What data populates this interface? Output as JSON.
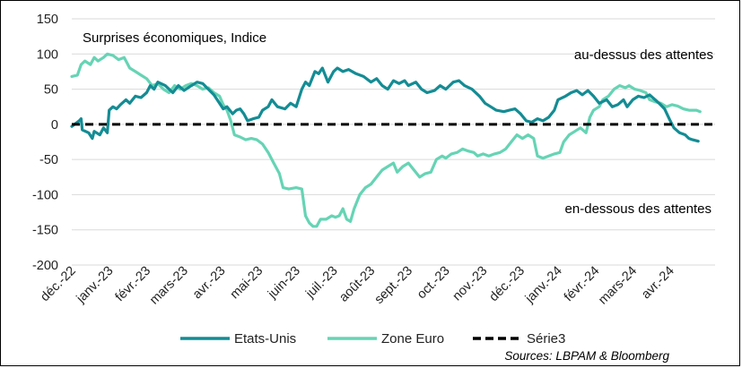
{
  "chart_data": {
    "type": "line",
    "title": "Surprises économiques, Indice",
    "annotations": {
      "upper": "au-dessus des attentes",
      "lower": "en-dessous des attentes"
    },
    "source": "Sources: LBPAM & Bloomberg",
    "ylim": [
      -200,
      150
    ],
    "yticks": [
      150,
      100,
      50,
      0,
      -50,
      -100,
      -150,
      -200
    ],
    "ytick_labels": [
      "150",
      "100",
      "50",
      "0",
      "-50",
      "-100",
      "-150",
      "-200"
    ],
    "xlim": [
      0,
      17.2
    ],
    "x_labels": [
      "déc.-22",
      "janv.-23",
      "févr.-23",
      "mars-23",
      "avr.-23",
      "mai-23",
      "juin-23",
      "juil.-23",
      "août-23",
      "sept.-23",
      "oct.-23",
      "nov.-23",
      "déc.-23",
      "janv.-24",
      "févr.-24",
      "mars-24",
      "avr.-24"
    ],
    "grid": "horizontal",
    "legend_position": "bottom",
    "series": [
      {
        "name": "Etats-Unis",
        "color": "#148C94",
        "style": "solid",
        "points": [
          [
            0,
            -3
          ],
          [
            0.2,
            5
          ],
          [
            0.25,
            8
          ],
          [
            0.28,
            -8
          ],
          [
            0.45,
            -12
          ],
          [
            0.55,
            -20
          ],
          [
            0.6,
            -10
          ],
          [
            0.75,
            -15
          ],
          [
            0.85,
            -5
          ],
          [
            0.95,
            -12
          ],
          [
            1.0,
            20
          ],
          [
            1.1,
            25
          ],
          [
            1.2,
            22
          ],
          [
            1.3,
            28
          ],
          [
            1.45,
            35
          ],
          [
            1.55,
            30
          ],
          [
            1.7,
            40
          ],
          [
            1.85,
            38
          ],
          [
            2.0,
            45
          ],
          [
            2.1,
            55
          ],
          [
            2.2,
            50
          ],
          [
            2.3,
            60
          ],
          [
            2.5,
            55
          ],
          [
            2.7,
            45
          ],
          [
            2.85,
            55
          ],
          [
            3.0,
            48
          ],
          [
            3.2,
            55
          ],
          [
            3.35,
            60
          ],
          [
            3.5,
            58
          ],
          [
            3.65,
            50
          ],
          [
            3.8,
            42
          ],
          [
            3.95,
            30
          ],
          [
            4.05,
            22
          ],
          [
            4.15,
            25
          ],
          [
            4.3,
            15
          ],
          [
            4.4,
            20
          ],
          [
            4.5,
            22
          ],
          [
            4.6,
            15
          ],
          [
            4.7,
            5
          ],
          [
            4.85,
            8
          ],
          [
            5.0,
            10
          ],
          [
            5.1,
            20
          ],
          [
            5.25,
            25
          ],
          [
            5.35,
            35
          ],
          [
            5.5,
            25
          ],
          [
            5.7,
            22
          ],
          [
            5.85,
            30
          ],
          [
            6.0,
            25
          ],
          [
            6.15,
            50
          ],
          [
            6.25,
            60
          ],
          [
            6.35,
            55
          ],
          [
            6.5,
            75
          ],
          [
            6.6,
            72
          ],
          [
            6.7,
            80
          ],
          [
            6.85,
            60
          ],
          [
            7.0,
            75
          ],
          [
            7.1,
            80
          ],
          [
            7.25,
            75
          ],
          [
            7.4,
            78
          ],
          [
            7.6,
            72
          ],
          [
            7.8,
            68
          ],
          [
            8.0,
            60
          ],
          [
            8.15,
            65
          ],
          [
            8.3,
            55
          ],
          [
            8.45,
            50
          ],
          [
            8.6,
            62
          ],
          [
            8.75,
            58
          ],
          [
            8.9,
            62
          ],
          [
            9.0,
            55
          ],
          [
            9.2,
            60
          ],
          [
            9.35,
            50
          ],
          [
            9.5,
            45
          ],
          [
            9.7,
            48
          ],
          [
            9.85,
            55
          ],
          [
            10.0,
            50
          ],
          [
            10.2,
            60
          ],
          [
            10.35,
            62
          ],
          [
            10.5,
            55
          ],
          [
            10.7,
            50
          ],
          [
            10.9,
            40
          ],
          [
            11.05,
            30
          ],
          [
            11.2,
            25
          ],
          [
            11.35,
            20
          ],
          [
            11.55,
            18
          ],
          [
            11.7,
            20
          ],
          [
            11.85,
            22
          ],
          [
            12.0,
            15
          ],
          [
            12.15,
            5
          ],
          [
            12.3,
            3
          ],
          [
            12.45,
            8
          ],
          [
            12.6,
            5
          ],
          [
            12.75,
            10
          ],
          [
            12.9,
            20
          ],
          [
            13.0,
            35
          ],
          [
            13.2,
            40
          ],
          [
            13.35,
            45
          ],
          [
            13.5,
            48
          ],
          [
            13.65,
            42
          ],
          [
            13.8,
            48
          ],
          [
            13.95,
            40
          ],
          [
            14.1,
            30
          ],
          [
            14.3,
            35
          ],
          [
            14.45,
            25
          ],
          [
            14.6,
            28
          ],
          [
            14.75,
            35
          ],
          [
            14.85,
            25
          ],
          [
            15.0,
            35
          ],
          [
            15.15,
            40
          ],
          [
            15.3,
            38
          ],
          [
            15.45,
            42
          ],
          [
            15.6,
            35
          ],
          [
            15.7,
            30
          ],
          [
            15.85,
            22
          ],
          [
            16.0,
            5
          ],
          [
            16.1,
            -5
          ],
          [
            16.25,
            -12
          ],
          [
            16.4,
            -15
          ],
          [
            16.5,
            -20
          ],
          [
            16.6,
            -22
          ],
          [
            16.75,
            -24
          ]
        ]
      },
      {
        "name": "Zone Euro",
        "color": "#66D4B4",
        "style": "solid",
        "points": [
          [
            0,
            68
          ],
          [
            0.15,
            70
          ],
          [
            0.25,
            85
          ],
          [
            0.35,
            90
          ],
          [
            0.5,
            85
          ],
          [
            0.6,
            95
          ],
          [
            0.7,
            90
          ],
          [
            0.85,
            95
          ],
          [
            0.95,
            100
          ],
          [
            1.1,
            98
          ],
          [
            1.25,
            92
          ],
          [
            1.4,
            95
          ],
          [
            1.55,
            80
          ],
          [
            1.7,
            75
          ],
          [
            1.85,
            70
          ],
          [
            2.0,
            65
          ],
          [
            2.15,
            55
          ],
          [
            2.3,
            58
          ],
          [
            2.45,
            50
          ],
          [
            2.6,
            45
          ],
          [
            2.75,
            55
          ],
          [
            2.9,
            50
          ],
          [
            3.05,
            55
          ],
          [
            3.2,
            58
          ],
          [
            3.35,
            55
          ],
          [
            3.5,
            50
          ],
          [
            3.65,
            52
          ],
          [
            3.8,
            45
          ],
          [
            3.95,
            40
          ],
          [
            4.05,
            28
          ],
          [
            4.15,
            20
          ],
          [
            4.25,
            5
          ],
          [
            4.35,
            -15
          ],
          [
            4.5,
            -18
          ],
          [
            4.65,
            -22
          ],
          [
            4.8,
            -20
          ],
          [
            4.95,
            -22
          ],
          [
            5.1,
            -28
          ],
          [
            5.25,
            -40
          ],
          [
            5.4,
            -55
          ],
          [
            5.55,
            -70
          ],
          [
            5.65,
            -90
          ],
          [
            5.8,
            -92
          ],
          [
            6.0,
            -90
          ],
          [
            6.15,
            -92
          ],
          [
            6.25,
            -130
          ],
          [
            6.35,
            -140
          ],
          [
            6.45,
            -145
          ],
          [
            6.55,
            -145
          ],
          [
            6.65,
            -135
          ],
          [
            6.8,
            -135
          ],
          [
            6.95,
            -130
          ],
          [
            7.05,
            -132
          ],
          [
            7.15,
            -130
          ],
          [
            7.25,
            -120
          ],
          [
            7.35,
            -135
          ],
          [
            7.45,
            -138
          ],
          [
            7.55,
            -120
          ],
          [
            7.7,
            -100
          ],
          [
            7.85,
            -90
          ],
          [
            8.0,
            -85
          ],
          [
            8.15,
            -75
          ],
          [
            8.3,
            -65
          ],
          [
            8.45,
            -60
          ],
          [
            8.6,
            -55
          ],
          [
            8.7,
            -68
          ],
          [
            8.85,
            -60
          ],
          [
            9.0,
            -55
          ],
          [
            9.15,
            -65
          ],
          [
            9.3,
            -75
          ],
          [
            9.45,
            -70
          ],
          [
            9.6,
            -68
          ],
          [
            9.75,
            -50
          ],
          [
            9.9,
            -45
          ],
          [
            10.0,
            -48
          ],
          [
            10.15,
            -42
          ],
          [
            10.3,
            -40
          ],
          [
            10.45,
            -35
          ],
          [
            10.6,
            -38
          ],
          [
            10.75,
            -40
          ],
          [
            10.85,
            -45
          ],
          [
            11.0,
            -42
          ],
          [
            11.15,
            -45
          ],
          [
            11.3,
            -42
          ],
          [
            11.45,
            -40
          ],
          [
            11.6,
            -35
          ],
          [
            11.75,
            -25
          ],
          [
            11.9,
            -15
          ],
          [
            12.05,
            -20
          ],
          [
            12.2,
            -15
          ],
          [
            12.35,
            -20
          ],
          [
            12.45,
            -45
          ],
          [
            12.6,
            -48
          ],
          [
            12.75,
            -45
          ],
          [
            12.9,
            -42
          ],
          [
            13.05,
            -40
          ],
          [
            13.15,
            -25
          ],
          [
            13.3,
            -15
          ],
          [
            13.45,
            -10
          ],
          [
            13.6,
            -5
          ],
          [
            13.75,
            -12
          ],
          [
            13.85,
            10
          ],
          [
            13.95,
            20
          ],
          [
            14.1,
            25
          ],
          [
            14.2,
            35
          ],
          [
            14.35,
            40
          ],
          [
            14.5,
            50
          ],
          [
            14.65,
            55
          ],
          [
            14.8,
            52
          ],
          [
            14.9,
            55
          ],
          [
            15.05,
            50
          ],
          [
            15.2,
            48
          ],
          [
            15.35,
            45
          ],
          [
            15.45,
            35
          ],
          [
            15.6,
            32
          ],
          [
            15.75,
            30
          ],
          [
            15.9,
            25
          ],
          [
            16.05,
            28
          ],
          [
            16.2,
            26
          ],
          [
            16.35,
            22
          ],
          [
            16.5,
            20
          ],
          [
            16.7,
            20
          ],
          [
            16.8,
            18
          ]
        ]
      },
      {
        "name": "Série3",
        "color": "#000000",
        "style": "dashed",
        "points": [
          [
            0,
            0
          ],
          [
            17.2,
            0
          ]
        ]
      }
    ]
  }
}
